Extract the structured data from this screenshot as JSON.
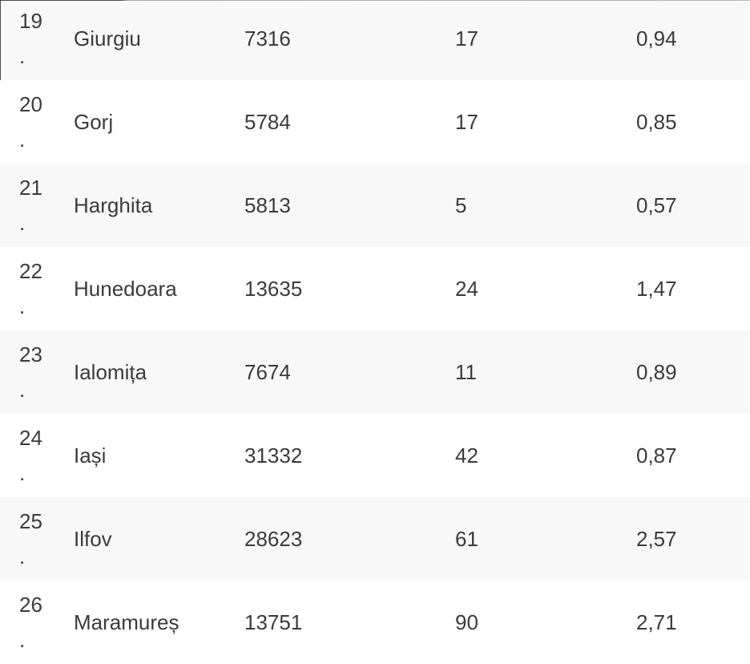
{
  "table": {
    "rank_suffix": ".",
    "rows": [
      {
        "rank": "19",
        "county": "Giurgiu",
        "total_cases": "7316",
        "new_cases": "17",
        "incidence_rate": "0,94"
      },
      {
        "rank": "20",
        "county": "Gorj",
        "total_cases": "5784",
        "new_cases": "17",
        "incidence_rate": "0,85"
      },
      {
        "rank": "21",
        "county": "Harghita",
        "total_cases": "5813",
        "new_cases": "5",
        "incidence_rate": "0,57"
      },
      {
        "rank": "22",
        "county": "Hunedoara",
        "total_cases": "13635",
        "new_cases": "24",
        "incidence_rate": "1,47"
      },
      {
        "rank": "23",
        "county": "Ialomița",
        "total_cases": "7674",
        "new_cases": "11",
        "incidence_rate": "0,89"
      },
      {
        "rank": "24",
        "county": "Iași",
        "total_cases": "31332",
        "new_cases": "42",
        "incidence_rate": "0,87"
      },
      {
        "rank": "25",
        "county": "Ilfov",
        "total_cases": "28623",
        "new_cases": "61",
        "incidence_rate": "2,57"
      },
      {
        "rank": "26",
        "county": "Maramureș",
        "total_cases": "13751",
        "new_cases": "90",
        "incidence_rate": "2,71"
      }
    ]
  },
  "colors": {
    "row_stripe": "#f8f8f8",
    "row_plain": "#ffffff",
    "text": "#3b3b3b",
    "crop_edge_dark": "#4a4a4a",
    "crop_edge_light": "#a9a9a9"
  }
}
